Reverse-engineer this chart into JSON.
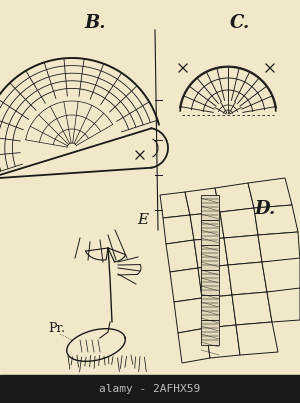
{
  "background_color": "#f0e8c8",
  "watermark_bg": "#1a1a1a",
  "watermark_text": "alamy - 2AFHX59",
  "watermark_color": "#bbbbbb",
  "label_B": "B.",
  "label_C": "C.",
  "label_D": "D.",
  "label_E": "E",
  "label_Pr": "Pr.",
  "fig_width": 3.0,
  "fig_height": 4.03,
  "dpi": 100,
  "line_color": "#1a1a1a"
}
